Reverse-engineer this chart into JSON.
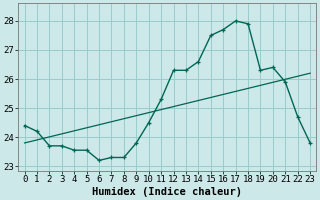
{
  "xlabel": "Humidex (Indice chaleur)",
  "ylabel": "",
  "background_color": "#cce8e8",
  "grid_color": "#99cccc",
  "line_color": "#006655",
  "xlim": [
    -0.5,
    23.5
  ],
  "ylim": [
    22.85,
    28.6
  ],
  "yticks": [
    23,
    24,
    25,
    26,
    27,
    28
  ],
  "xticks": [
    0,
    1,
    2,
    3,
    4,
    5,
    6,
    7,
    8,
    9,
    10,
    11,
    12,
    13,
    14,
    15,
    16,
    17,
    18,
    19,
    20,
    21,
    22,
    23
  ],
  "series1_x": [
    0,
    1,
    2,
    3,
    4,
    5,
    6,
    7,
    8,
    9,
    10,
    11,
    12,
    13,
    14,
    15,
    16,
    17,
    18,
    19,
    20,
    21,
    22,
    23
  ],
  "series1_y": [
    24.4,
    24.2,
    23.7,
    23.7,
    23.55,
    23.55,
    23.2,
    23.3,
    23.3,
    23.8,
    24.5,
    25.3,
    26.3,
    26.3,
    26.6,
    27.5,
    27.7,
    28.0,
    27.9,
    26.3,
    26.4,
    25.9,
    24.7,
    23.8
  ],
  "series2_x": [
    0,
    23
  ],
  "series2_y": [
    23.8,
    26.2
  ],
  "font_family": "monospace",
  "tick_fontsize": 6.5,
  "xlabel_fontsize": 7.5
}
